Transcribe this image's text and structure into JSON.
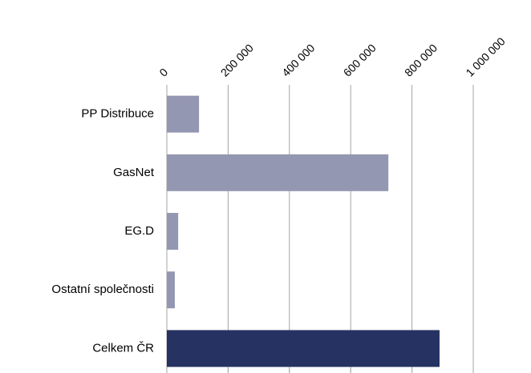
{
  "chart_data": {
    "type": "barh",
    "categories": [
      "PP Distribuce",
      "GasNet",
      "EG.D",
      "Ostatní společnosti",
      "Celkem ČR"
    ],
    "values": [
      105000,
      723000,
      37000,
      26000,
      890000
    ],
    "colors": [
      "#9497b2",
      "#9497b2",
      "#9497b2",
      "#9497b2",
      "#253262"
    ],
    "xlim": [
      0,
      1000000
    ],
    "xticks": [
      0,
      {
        "value": 200000,
        "label": "200 000"
      },
      {
        "value": 400000,
        "label": "400 000"
      },
      {
        "value": 600000,
        "label": "600 000"
      },
      {
        "value": 800000,
        "label": "800 000"
      },
      {
        "value": 1000000,
        "label": "1 000 000"
      }
    ],
    "grid": true
  }
}
